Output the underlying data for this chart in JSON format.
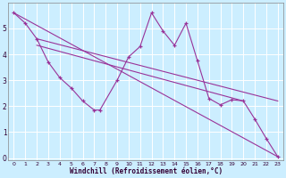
{
  "xlabel": "Windchill (Refroidissement éolien,°C)",
  "bg_color": "#cceeff",
  "line_color": "#993399",
  "xlim": [
    -0.5,
    23.5
  ],
  "ylim": [
    -0.1,
    6.0
  ],
  "xticks": [
    0,
    1,
    2,
    3,
    4,
    5,
    6,
    7,
    8,
    9,
    10,
    11,
    12,
    13,
    14,
    15,
    16,
    17,
    18,
    19,
    20,
    21,
    22,
    23
  ],
  "yticks": [
    0,
    1,
    2,
    3,
    4,
    5
  ],
  "grid_color": "#ffffff",
  "series_x": [
    0,
    1,
    2,
    3,
    4,
    5,
    6,
    7,
    7.5,
    9,
    10,
    11,
    12,
    13,
    14,
    15,
    16,
    17,
    18,
    19,
    20,
    21,
    22,
    23
  ],
  "series_y": [
    5.6,
    5.2,
    4.6,
    3.7,
    3.1,
    2.7,
    2.2,
    1.85,
    1.85,
    3.0,
    3.9,
    4.3,
    5.6,
    4.9,
    4.35,
    5.2,
    3.75,
    2.3,
    2.05,
    2.25,
    2.2,
    1.5,
    0.75,
    0.05
  ],
  "line1": {
    "x": [
      0,
      23
    ],
    "y": [
      5.6,
      0.05
    ]
  },
  "line2": {
    "x": [
      2,
      23
    ],
    "y": [
      4.6,
      2.2
    ]
  },
  "line3": {
    "x": [
      2,
      20
    ],
    "y": [
      4.35,
      2.2
    ]
  }
}
